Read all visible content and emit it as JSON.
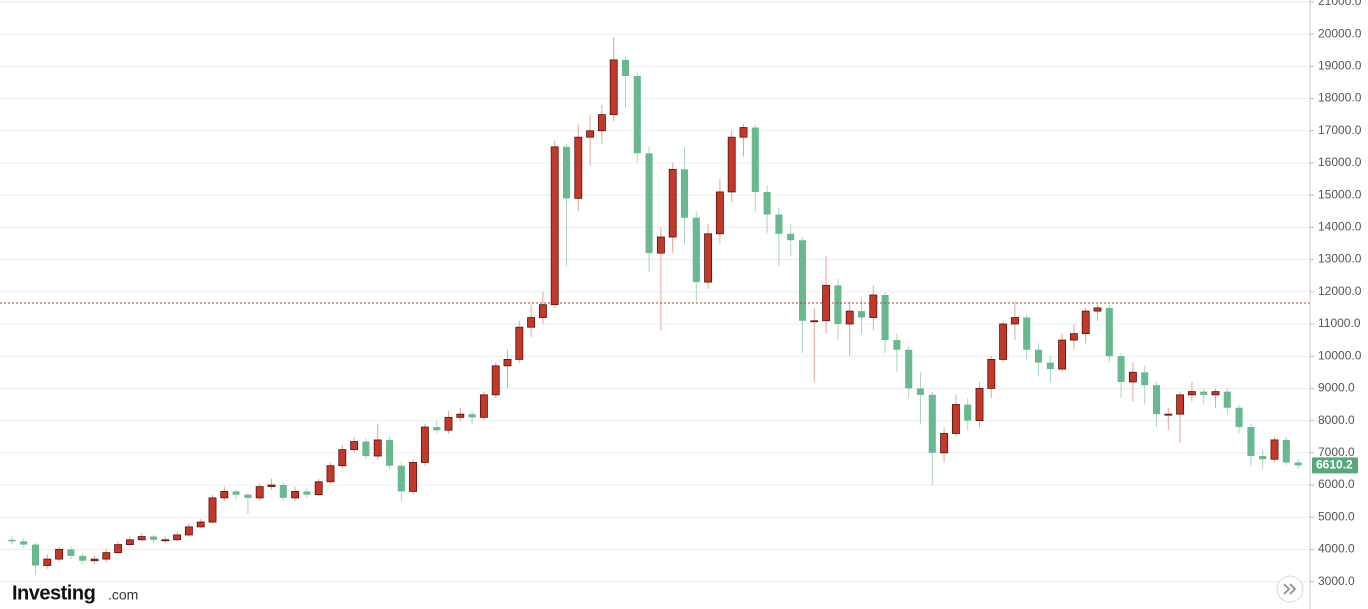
{
  "chart_data": {
    "type": "candlestick",
    "brand": {
      "name": "Investing",
      "suffix": ".com"
    },
    "up_color": "#c0392b",
    "down_color": "#6ab890",
    "ylim": [
      2150,
      21060
    ],
    "yticks": [
      {
        "value": 3000,
        "label": "3000.0"
      },
      {
        "value": 4000,
        "label": "4000.0"
      },
      {
        "value": 5000,
        "label": "5000.0"
      },
      {
        "value": 6000,
        "label": "6000.0"
      },
      {
        "value": 7000,
        "label": "7000.0"
      },
      {
        "value": 8000,
        "label": "8000.0"
      },
      {
        "value": 9000,
        "label": "9000.0"
      },
      {
        "value": 10000,
        "label": "10000.0"
      },
      {
        "value": 11000,
        "label": "11000.0"
      },
      {
        "value": 12000,
        "label": "12000.0"
      },
      {
        "value": 13000,
        "label": "13000.0"
      },
      {
        "value": 14000,
        "label": "14000.0"
      },
      {
        "value": 15000,
        "label": "15000.0"
      },
      {
        "value": 16000,
        "label": "16000.0"
      },
      {
        "value": 17000,
        "label": "17000.0"
      },
      {
        "value": 18000,
        "label": "18000.0"
      },
      {
        "value": 19000,
        "label": "19000.0"
      },
      {
        "value": 20000,
        "label": "20000.0"
      },
      {
        "value": 21000,
        "label": "21000.0"
      }
    ],
    "grid": true,
    "reference_line": 11650,
    "last_price": 6610.2,
    "series": [
      {
        "open": [
          4300,
          4250,
          4150,
          3500,
          3700,
          4000,
          3800,
          3650,
          3700,
          3900,
          4150,
          4300,
          4400,
          4300,
          4300,
          4450,
          4700,
          4850,
          5600,
          5800,
          5700,
          5600,
          5950,
          6000,
          5600,
          5800,
          5700,
          6100,
          6600,
          7100,
          7350,
          6900,
          7400,
          6600,
          5800,
          6700,
          7800,
          7700,
          8100,
          8200,
          8100,
          8800,
          9700,
          9900,
          10900,
          11200,
          11600,
          16500,
          14900,
          16800,
          17000,
          17500,
          19200,
          18700,
          16300,
          13200,
          13700,
          15800,
          14300,
          12300,
          13800,
          15100,
          16800,
          17100,
          15100,
          14400,
          13800,
          13600,
          11100,
          11100,
          12200,
          11000,
          11400,
          11200,
          11900,
          10500,
          10200,
          9000,
          8800,
          7000,
          7600,
          8500,
          8000,
          9000,
          9900,
          11000,
          11200,
          10200,
          9800,
          9600,
          10500,
          10700,
          11400,
          11500,
          10000,
          9200,
          9500,
          9100,
          8200,
          8200,
          8800,
          8900,
          8800,
          8900,
          8400,
          7800,
          6900,
          6800,
          7400,
          6700
        ],
        "high": [
          4400,
          4350,
          4200,
          3850,
          4100,
          4100,
          3900,
          3800,
          4000,
          4250,
          4400,
          4500,
          4450,
          4400,
          4550,
          4800,
          4950,
          5700,
          5950,
          5850,
          5750,
          6050,
          6200,
          6100,
          5950,
          5900,
          6200,
          6700,
          7250,
          7500,
          7450,
          7900,
          7500,
          6700,
          6800,
          7900,
          8000,
          8300,
          8400,
          8300,
          8900,
          9800,
          10200,
          11100,
          11600,
          12000,
          16700,
          16600,
          17200,
          17500,
          17800,
          19900,
          19300,
          18800,
          16500,
          14000,
          16000,
          16500,
          14500,
          14100,
          15500,
          17000,
          17200,
          17200,
          15300,
          14600,
          14100,
          13700,
          11500,
          13100,
          12400,
          11700,
          11800,
          12200,
          12000,
          10700,
          10300,
          9500,
          8900,
          7800,
          8800,
          8700,
          9200,
          10000,
          11100,
          11700,
          11300,
          10400,
          10000,
          10700,
          11000,
          11500,
          11600,
          11600,
          10100,
          9800,
          9700,
          9200,
          8400,
          8900,
          9200,
          9000,
          9000,
          9000,
          8500,
          7900,
          7100,
          7500,
          7500,
          6800
        ],
        "low": [
          4150,
          4050,
          3200,
          3400,
          3600,
          3700,
          3550,
          3550,
          3600,
          3850,
          4100,
          4250,
          4200,
          4200,
          4250,
          4400,
          4650,
          4800,
          5500,
          5550,
          5100,
          5500,
          5850,
          5500,
          5500,
          5600,
          5650,
          6050,
          6500,
          7000,
          6800,
          6800,
          6500,
          5500,
          5700,
          6600,
          7600,
          7600,
          8000,
          7900,
          8000,
          8700,
          9000,
          9800,
          10600,
          11000,
          11500,
          12800,
          14500,
          15900,
          16600,
          17300,
          17700,
          16000,
          12600,
          10800,
          13200,
          13500,
          11700,
          12100,
          13500,
          14800,
          16200,
          14500,
          13800,
          12800,
          13100,
          10100,
          9200,
          10700,
          10500,
          10000,
          10700,
          10800,
          10100,
          9500,
          8700,
          7900,
          6000,
          6700,
          7500,
          7700,
          7800,
          8700,
          9800,
          10500,
          9900,
          9400,
          9200,
          9500,
          10200,
          10400,
          11100,
          9800,
          8700,
          8600,
          8500,
          7800,
          7700,
          7300,
          8600,
          8500,
          8400,
          8200,
          7600,
          6600,
          6500,
          6700,
          6600,
          6500
        ],
        "close": [
          4250,
          4150,
          3500,
          3700,
          4000,
          3800,
          3650,
          3700,
          3900,
          4150,
          4300,
          4400,
          4300,
          4300,
          4450,
          4700,
          4850,
          5600,
          5800,
          5700,
          5600,
          5950,
          6000,
          5600,
          5800,
          5700,
          6100,
          6600,
          7100,
          7350,
          6900,
          7400,
          6600,
          5800,
          6700,
          7800,
          7700,
          8100,
          8200,
          8100,
          8800,
          9700,
          9900,
          10900,
          11200,
          11600,
          16500,
          14900,
          16800,
          17000,
          17500,
          19200,
          18700,
          16300,
          13200,
          13700,
          15800,
          14300,
          12300,
          13800,
          15100,
          16800,
          17100,
          15100,
          14400,
          13800,
          13600,
          11100,
          11100,
          12200,
          11000,
          11400,
          11200,
          11900,
          10500,
          10200,
          9000,
          8800,
          7000,
          7600,
          8500,
          8000,
          9000,
          9900,
          11000,
          11200,
          10200,
          9800,
          9600,
          10500,
          10700,
          11400,
          11500,
          10000,
          9200,
          9500,
          9100,
          8200,
          8200,
          8800,
          8900,
          8800,
          8900,
          8400,
          7800,
          6900,
          6800,
          7400,
          6700,
          6610.2
        ]
      }
    ]
  }
}
